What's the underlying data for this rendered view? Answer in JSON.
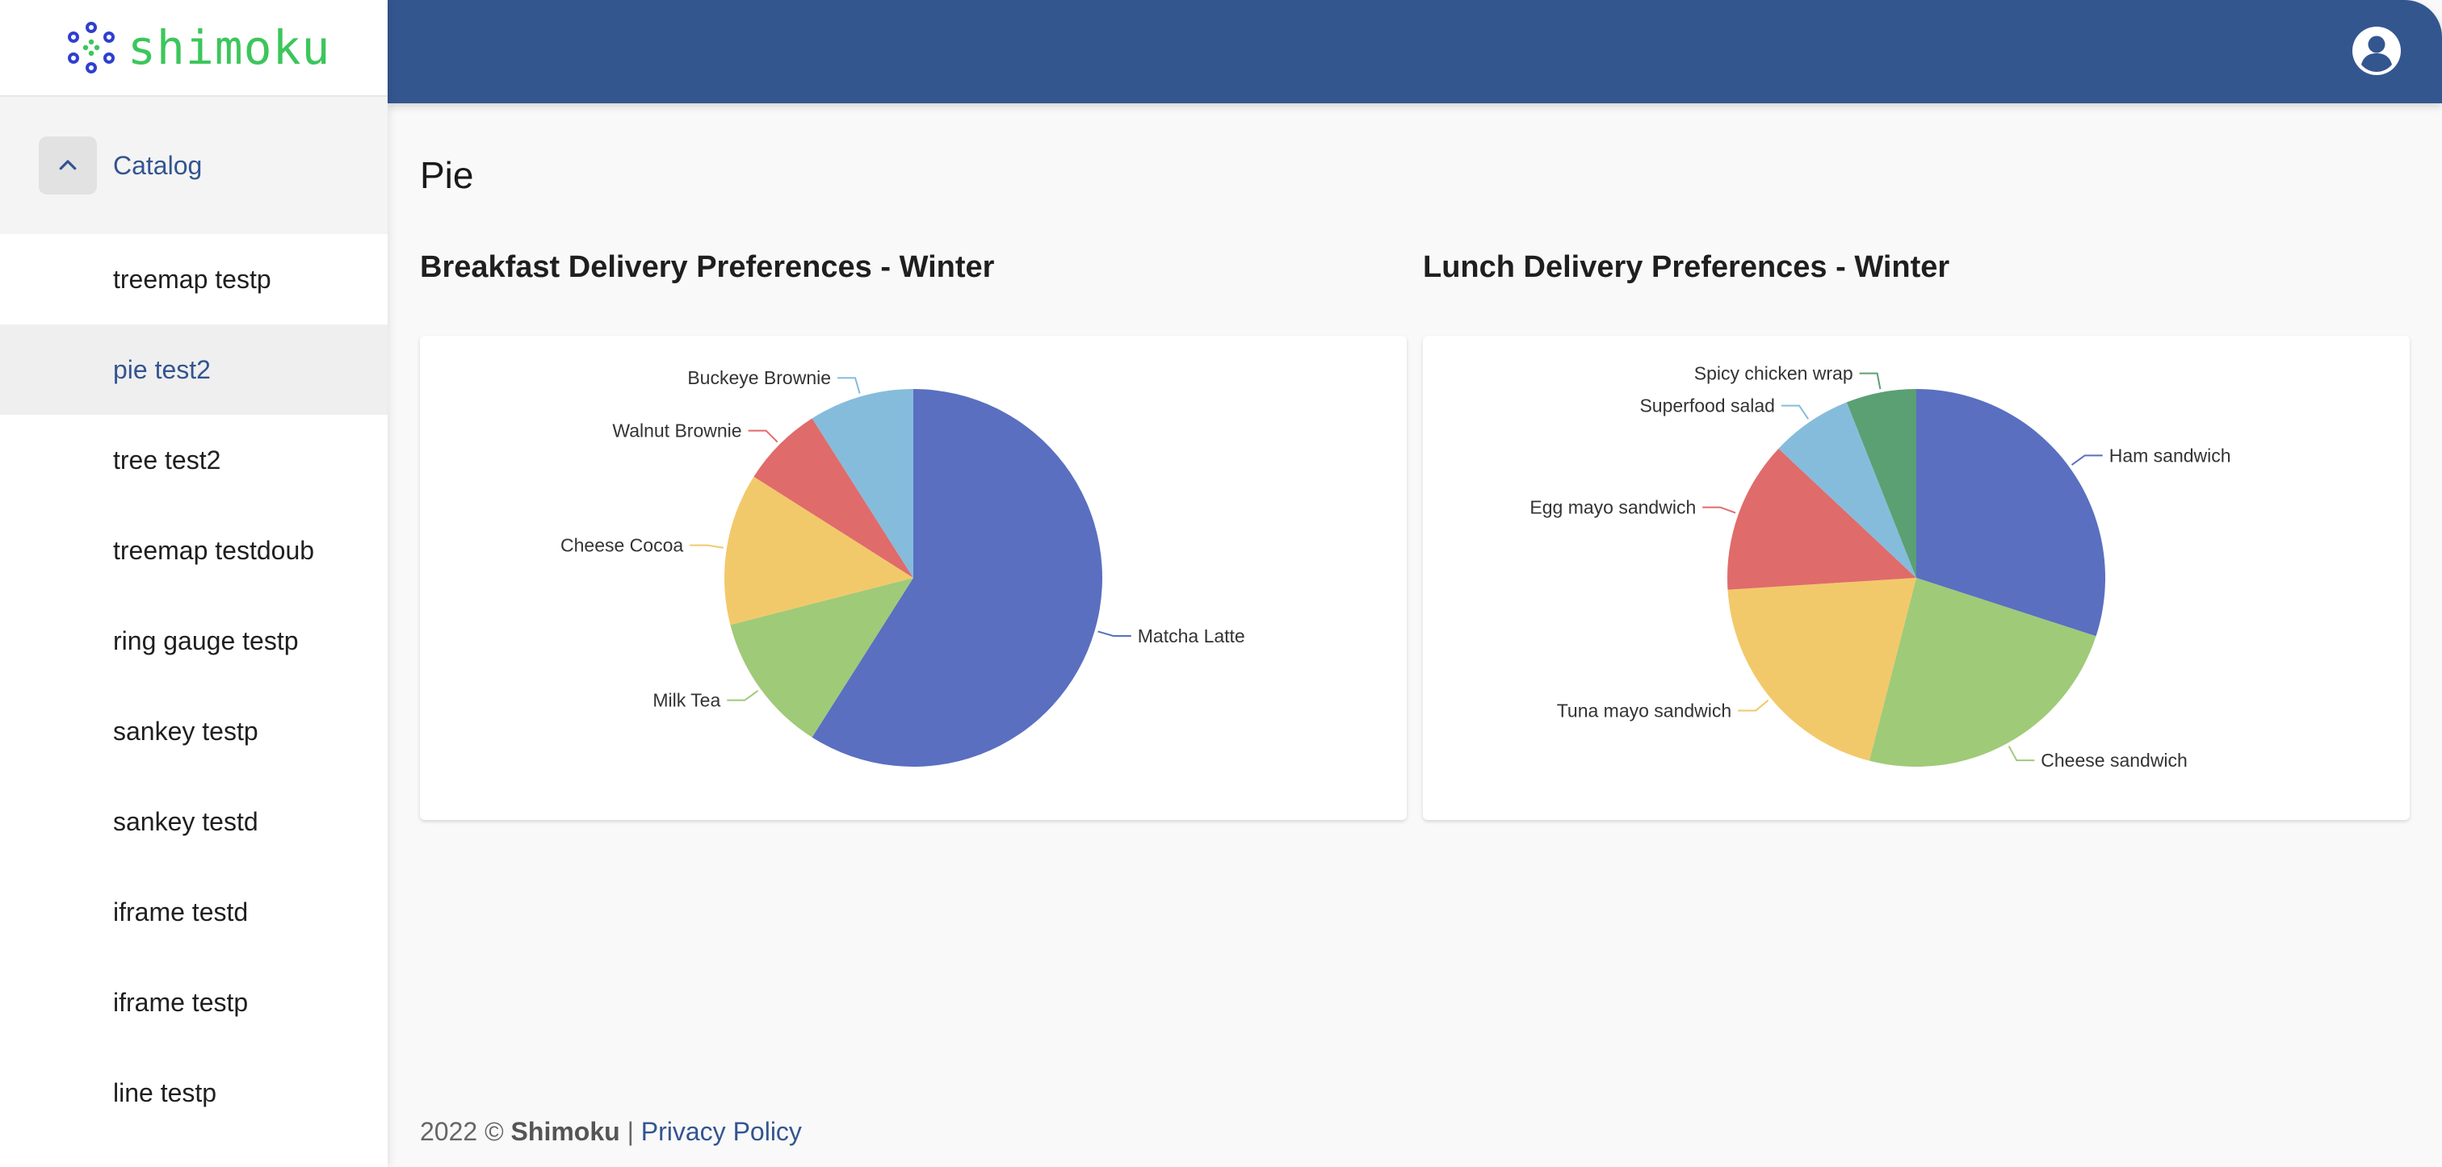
{
  "brand": {
    "name": "shimoku"
  },
  "sidebar": {
    "catalog_label": "Catalog",
    "items": [
      {
        "label": "treemap testp",
        "active": false
      },
      {
        "label": "pie test2",
        "active": true
      },
      {
        "label": "tree test2",
        "active": false
      },
      {
        "label": "treemap testdoub",
        "active": false
      },
      {
        "label": "ring gauge testp",
        "active": false
      },
      {
        "label": "sankey testp",
        "active": false
      },
      {
        "label": "sankey testd",
        "active": false
      },
      {
        "label": "iframe testd",
        "active": false
      },
      {
        "label": "iframe testp",
        "active": false
      },
      {
        "label": "line testp",
        "active": false
      }
    ]
  },
  "header": {
    "account_icon": "account-circle-icon",
    "color": "#34568f"
  },
  "main": {
    "title": "Pie"
  },
  "chart_data": [
    {
      "type": "pie",
      "title": "Breakfast Delivery Preferences - Winter",
      "categories": [
        "Matcha Latte",
        "Milk Tea",
        "Cheese Cocoa",
        "Walnut Brownie",
        "Buckeye Brownie"
      ],
      "values": [
        59,
        12,
        13,
        7,
        9
      ],
      "colors": [
        "#5a6fc0",
        "#9fca78",
        "#f2c96a",
        "#e06b6b",
        "#85bcdc"
      ]
    },
    {
      "type": "pie",
      "title": "Lunch Delivery Preferences - Winter",
      "categories": [
        "Ham sandwich",
        "Cheese sandwich",
        "Tuna mayo sandwich",
        "Egg mayo sandwich",
        "Superfood salad",
        "Spicy chicken wrap"
      ],
      "values": [
        30,
        24,
        20,
        13,
        7,
        6
      ],
      "colors": [
        "#5a6fc0",
        "#9fca78",
        "#f2c96a",
        "#e06b6b",
        "#85bcdc",
        "#5aa073"
      ]
    }
  ],
  "footer": {
    "year": "2022 ©",
    "company": "Shimoku",
    "separator": "|",
    "privacy_label": "Privacy Policy"
  }
}
